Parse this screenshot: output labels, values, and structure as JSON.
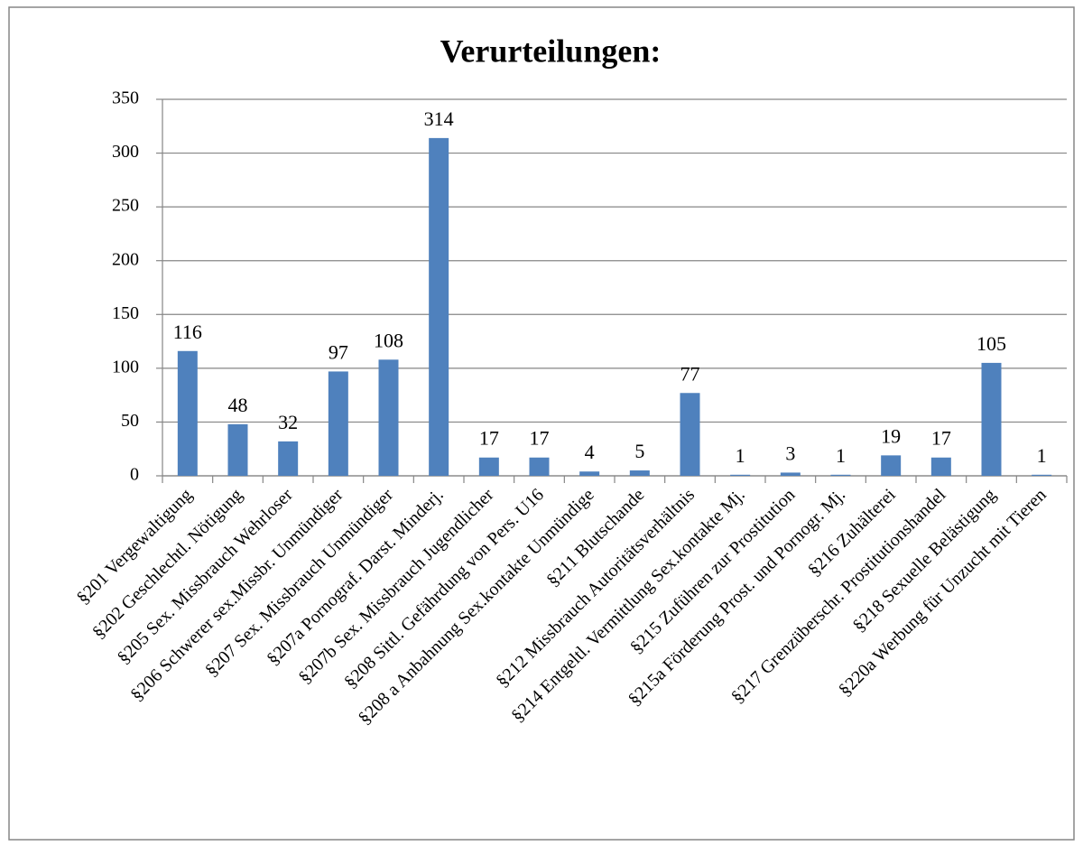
{
  "chart_data": {
    "type": "bar",
    "title": "Verurteilungen:",
    "categories": [
      "§201 Vergewaltigung",
      "§202 Geschlechtl. Nötigung",
      "§205 Sex. Missbrauch Wehrloser",
      "§206 Schwerer sex.Missbr. Unmündiger",
      "§207 Sex. Missbrauch Unmündiger",
      "§207a Pornograf. Darst. Minderj.",
      "§207b Sex. Missbrauch Jugendlicher",
      "§208 Sittl. Gefährdung von Pers. U16",
      "§208 a Anbahnung Sex.kontakte Unmündige",
      "§211 Blutschande",
      "§212 Missbrauch Autoritätsverhältnis",
      "§214 Entgeltl. Vermittlung Sex.kontakte Mj.",
      "§215 Zuführen zur Prostitution",
      "§215a Förderung Prost. und Pornogr. Mj.",
      "§216 Zuhälterei",
      "§217 Grenzüberschr. Prostitutionshandel",
      "§218 Sexuelle Belästigung",
      "§220a Werbung für Unzucht mit Tieren"
    ],
    "values": [
      116,
      48,
      32,
      97,
      108,
      314,
      17,
      17,
      4,
      5,
      77,
      1,
      3,
      1,
      19,
      17,
      105,
      1
    ],
    "color": "#4f81bd",
    "ylim": [
      0,
      350
    ],
    "yticks": [
      0,
      50,
      100,
      150,
      200,
      250,
      300,
      350
    ],
    "grid": true
  }
}
